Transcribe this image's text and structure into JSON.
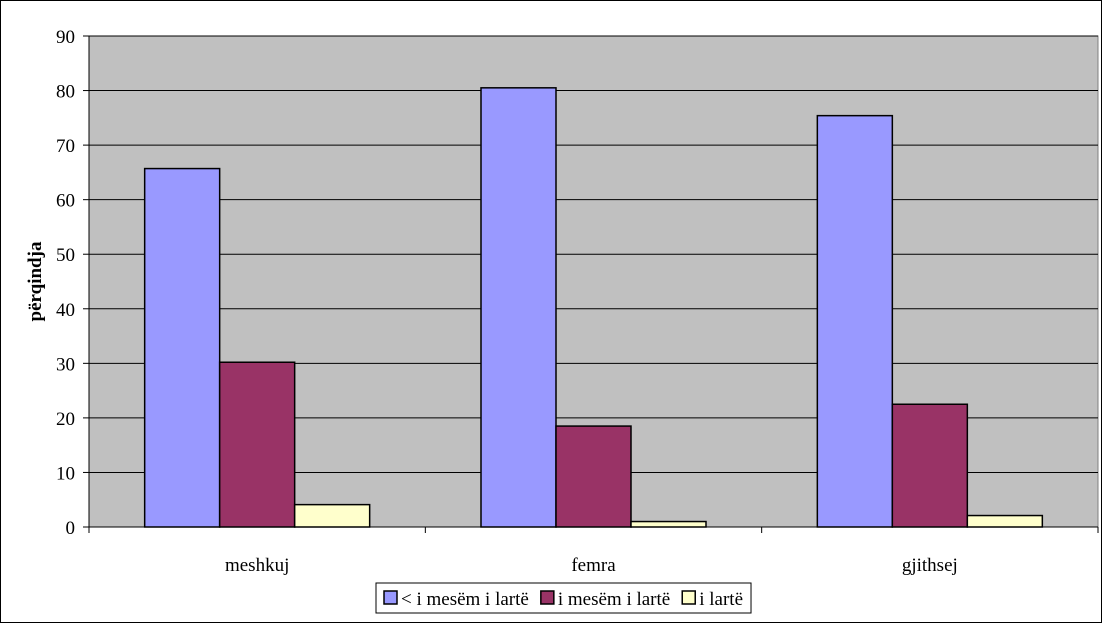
{
  "chart_data": {
    "type": "bar",
    "categories": [
      "meshkuj",
      "femra",
      "gjithsej"
    ],
    "series": [
      {
        "name": "< i mesëm i lartë",
        "values": [
          65.7,
          80.5,
          75.4
        ],
        "color": "#9999ff"
      },
      {
        "name": "i mesëm i lartë",
        "values": [
          30.2,
          18.5,
          22.5
        ],
        "color": "#993366"
      },
      {
        "name": "i lartë",
        "values": [
          4.1,
          1.0,
          2.1
        ],
        "color": "#ffffcc"
      }
    ],
    "title": "",
    "xlabel": "",
    "ylabel": "përqindja",
    "ylim": [
      0,
      90
    ],
    "yticks": [
      0,
      10,
      20,
      30,
      40,
      50,
      60,
      70,
      80,
      90
    ],
    "grid": true,
    "plot_background": "#c0c0c0",
    "legend_position": "bottom"
  }
}
